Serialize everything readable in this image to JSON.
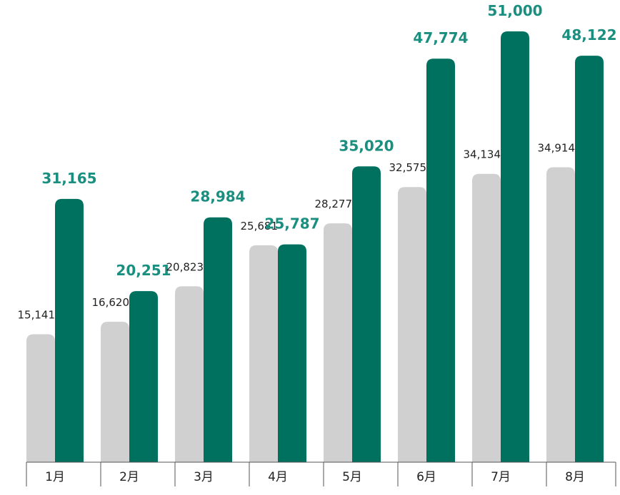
{
  "chart_data": {
    "type": "bar",
    "categories": [
      "1月",
      "2月",
      "3月",
      "4月",
      "5月",
      "6月",
      "7月",
      "8月"
    ],
    "series": [
      {
        "values": [
          15141,
          16620,
          20823,
          25681,
          28277,
          32575,
          34134,
          34914
        ]
      },
      {
        "values": [
          31165,
          20251,
          28984,
          25787,
          35020,
          47774,
          51000,
          48122
        ]
      }
    ],
    "data_labels": {
      "prev": [
        "15,141",
        "16,620",
        "20,823",
        "25,681",
        "28,277",
        "32,575",
        "34,134",
        "34,914"
      ],
      "cur": [
        "31,165",
        "20,251",
        "28,984",
        "25,787",
        "35,020",
        "47,774",
        "51,000",
        "48,122"
      ]
    },
    "ylim": [
      0,
      51000
    ],
    "grid": false,
    "legend": "none",
    "colors": {
      "prev": "#d0d0d0",
      "cur": "#00705f",
      "cur_label": "#1a8f80",
      "axis": "#555555"
    }
  }
}
